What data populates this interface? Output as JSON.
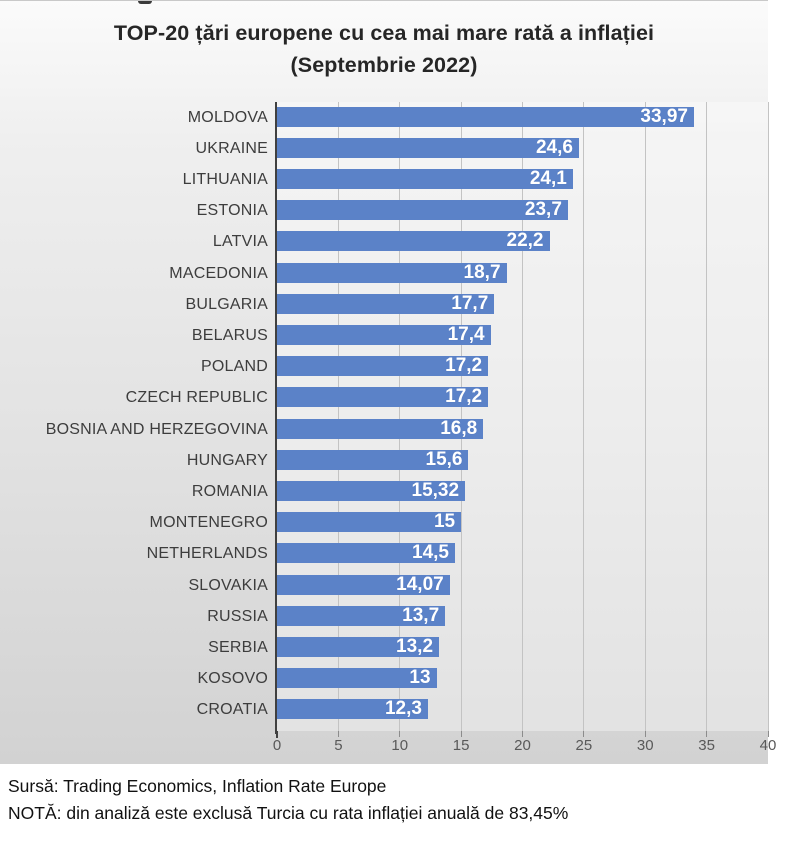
{
  "title": {
    "line1": "TOP-20 țări europene cu cea mai mare rată a inflației",
    "line2": "(Septembrie 2022)"
  },
  "chart_data": {
    "type": "bar",
    "orientation": "horizontal",
    "title": "TOP-20 țări europene cu cea mai mare rată a inflației (Septembrie 2022)",
    "categories": [
      "MOLDOVA",
      "UKRAINE",
      "LITHUANIA",
      "ESTONIA",
      "LATVIA",
      "MACEDONIA",
      "BULGARIA",
      "BELARUS",
      "POLAND",
      "CZECH REPUBLIC",
      "BOSNIA AND HERZEGOVINA",
      "HUNGARY",
      "ROMANIA",
      "MONTENEGRO",
      "NETHERLANDS",
      "SLOVAKIA",
      "RUSSIA",
      "SERBIA",
      "KOSOVO",
      "CROATIA"
    ],
    "values": [
      33.97,
      24.6,
      24.1,
      23.7,
      22.2,
      18.7,
      17.7,
      17.4,
      17.2,
      17.2,
      16.8,
      15.6,
      15.32,
      15,
      14.5,
      14.07,
      13.7,
      13.2,
      13,
      12.3
    ],
    "value_labels": [
      "33,97",
      "24,6",
      "24,1",
      "23,7",
      "22,2",
      "18,7",
      "17,7",
      "17,4",
      "17,2",
      "17,2",
      "16,8",
      "15,6",
      "15,32",
      "15",
      "14,5",
      "14,07",
      "13,7",
      "13,2",
      "13",
      "12,3"
    ],
    "x_ticks": [
      0,
      5,
      10,
      15,
      20,
      25,
      30,
      35,
      40
    ],
    "xlim": [
      0,
      40
    ],
    "grid": true,
    "legend": false,
    "bar_color": "#5b82c8",
    "value_label_color": "#ffffff",
    "axis_color": "#404040",
    "gridline_color": "#c3c3c3",
    "tick_label_color": "#595959",
    "category_label_color": "#3d3d3d"
  },
  "footer": {
    "source": "Sursă: Trading Economics, Inflation Rate Europe",
    "note": "NOTĂ: din analiză este exclusă Turcia cu rata inflației anuală de 83,45%"
  }
}
